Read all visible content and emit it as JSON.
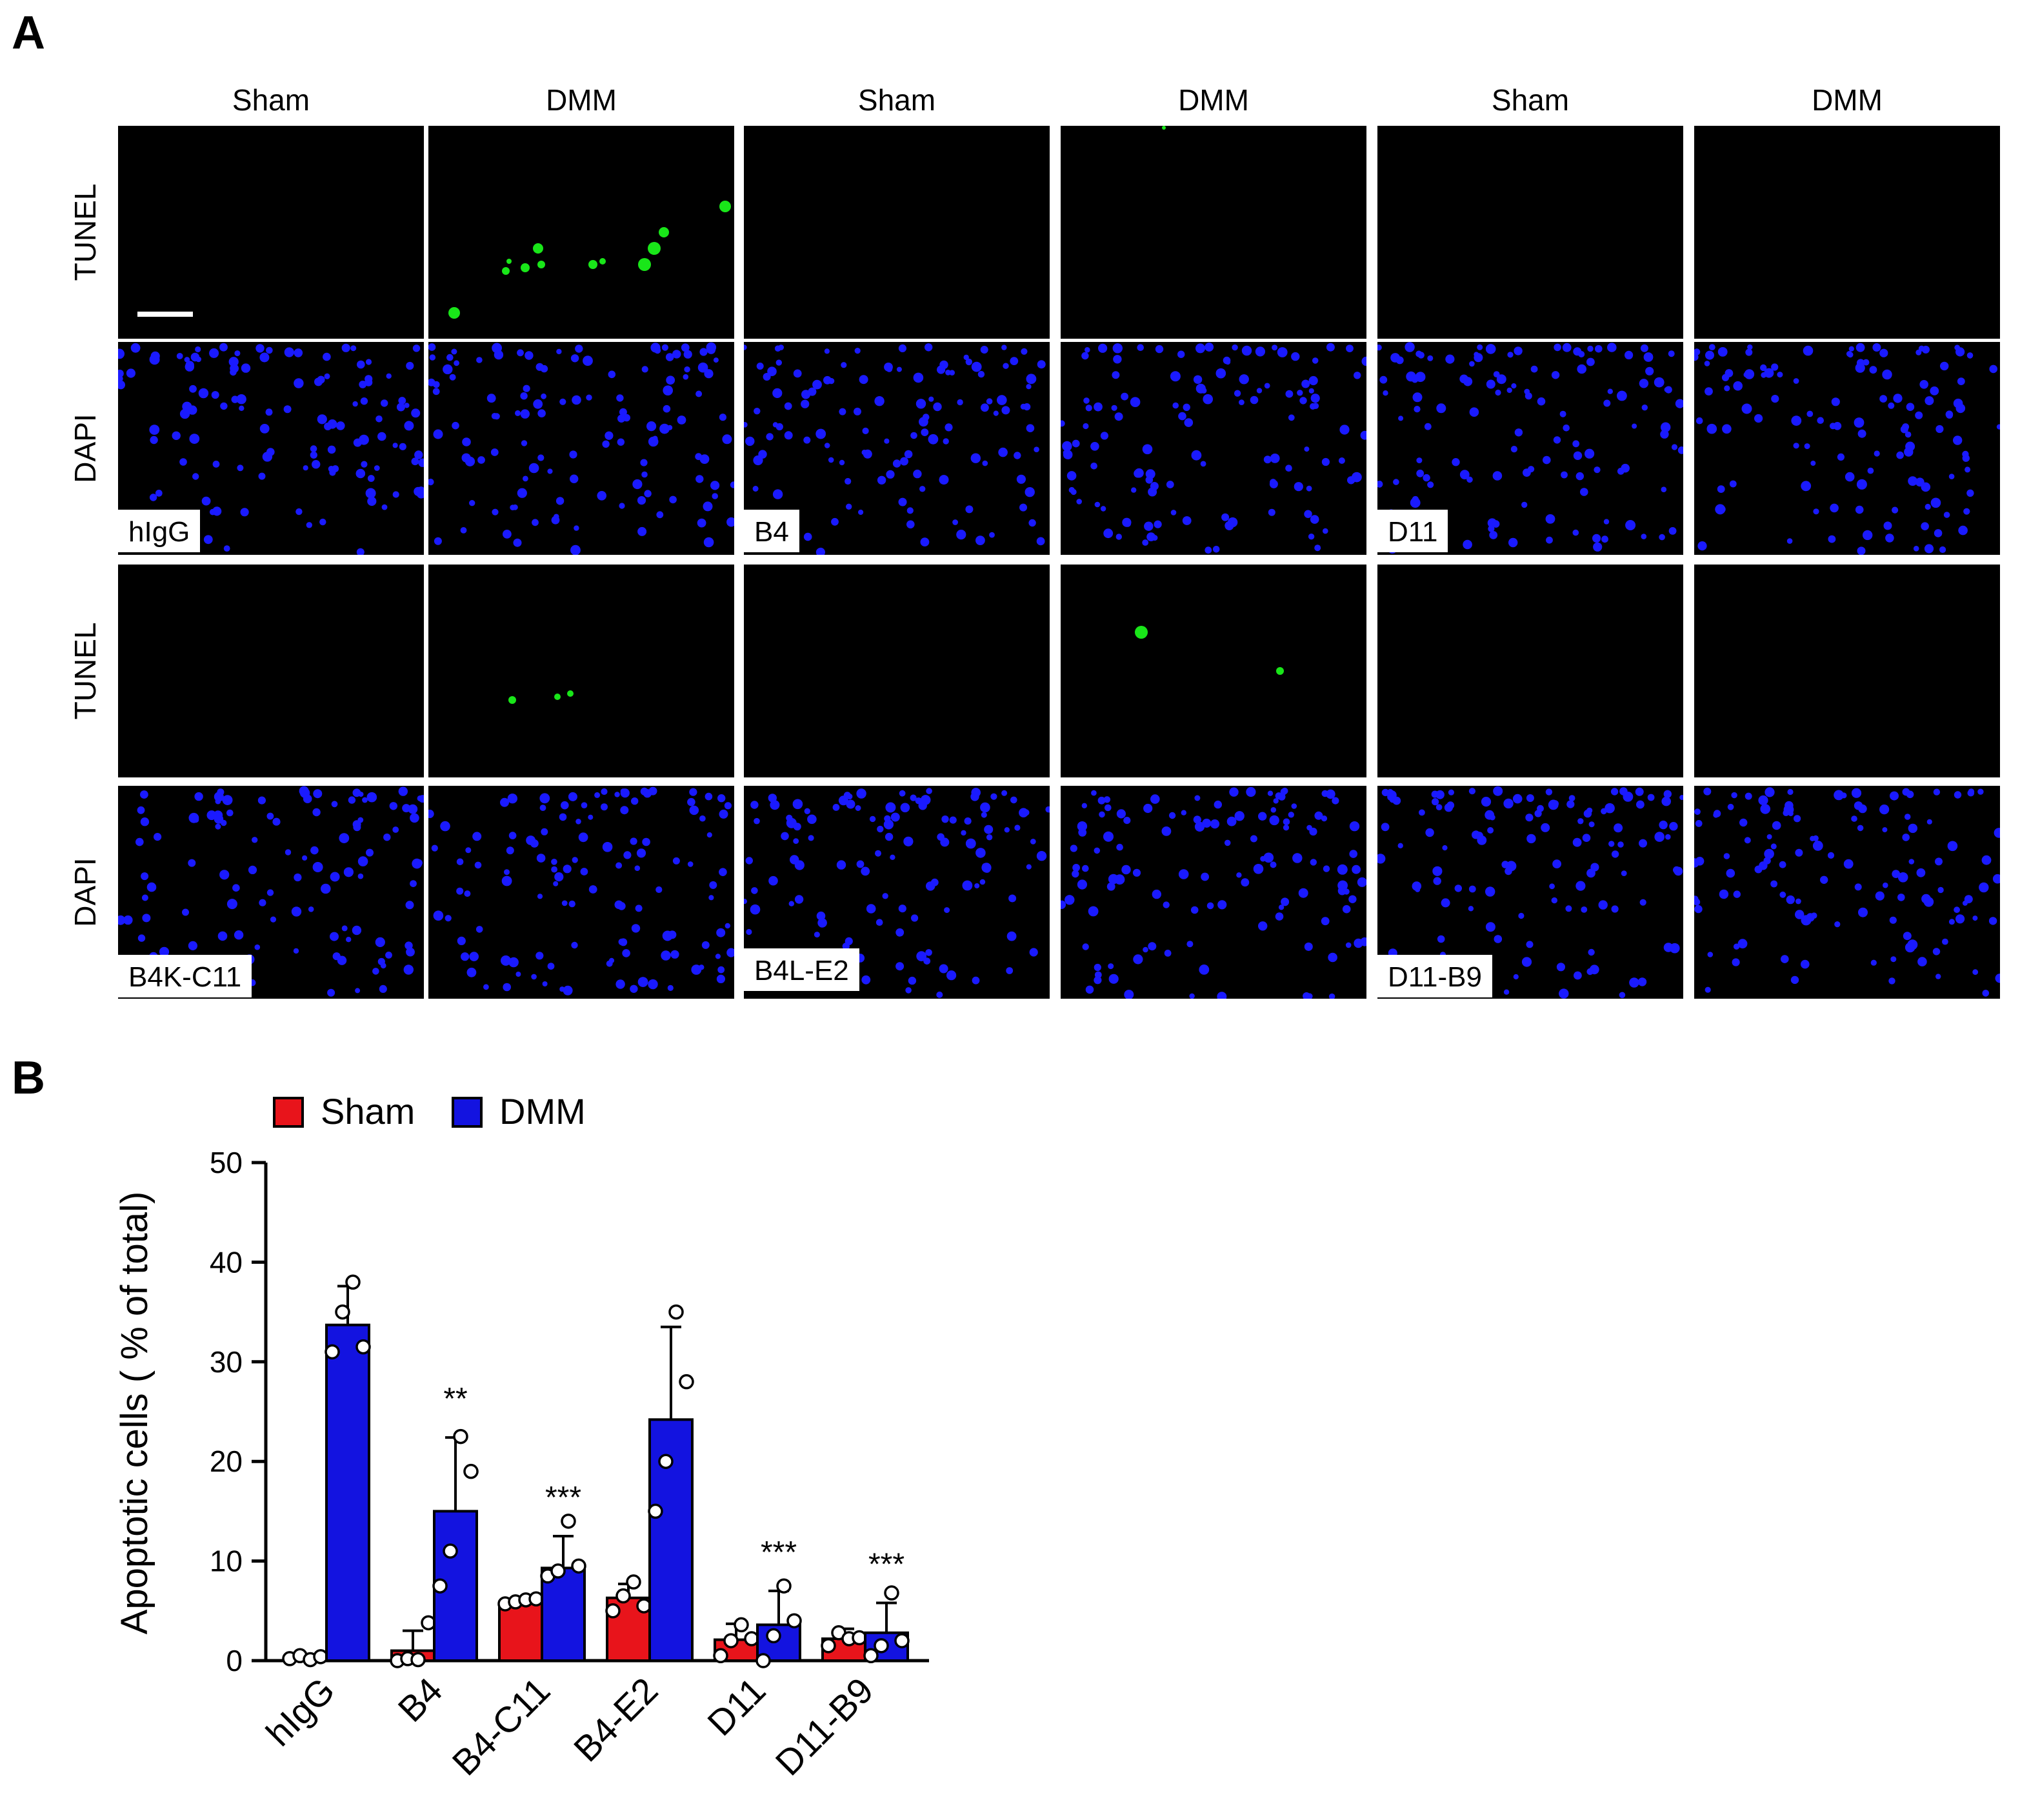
{
  "panels": {
    "a": "A",
    "b": "B"
  },
  "micrograph": {
    "column_labels": [
      "Sham",
      "DMM",
      "Sham",
      "DMM",
      "Sham",
      "DMM"
    ],
    "row_labels": [
      "TUNEL",
      "DAPI",
      "TUNEL",
      "DAPI"
    ],
    "group_labels": [
      "hIgG",
      "B4",
      "D11",
      "B4K-C11",
      "B4L-E2",
      "D11-B9"
    ],
    "colors": {
      "tunel": "#19e619",
      "dapi": "#1a1aff",
      "background": "#000000"
    }
  },
  "chart_data": {
    "type": "bar",
    "categories": [
      "hIgG",
      "B4",
      "B4-C11",
      "B4-E2",
      "D11",
      "D11-B9"
    ],
    "series": [
      {
        "name": "Sham",
        "color": "#e8141b",
        "values": [
          0.3,
          1.0,
          5.9,
          6.3,
          2.1,
          2.2
        ],
        "errors": [
          0.3,
          2.0,
          0.4,
          1.4,
          1.6,
          1.0
        ],
        "points": [
          [
            0.2,
            0.5,
            0.1,
            0.4
          ],
          [
            0.0,
            0.2,
            0.1,
            3.8
          ],
          [
            5.7,
            5.9,
            6.1,
            6.2
          ],
          [
            5.0,
            6.5,
            7.9,
            5.5
          ],
          [
            0.5,
            2.0,
            3.6,
            2.2
          ],
          [
            1.5,
            2.8,
            2.2,
            2.3
          ]
        ]
      },
      {
        "name": "DMM",
        "color": "#1313e0",
        "values": [
          33.7,
          15.0,
          9.3,
          24.2,
          3.6,
          2.8
        ],
        "errors": [
          3.9,
          7.4,
          3.2,
          9.3,
          3.4,
          3.0
        ],
        "points": [
          [
            31.0,
            35.0,
            38.0,
            31.5
          ],
          [
            7.5,
            11.0,
            22.5,
            19.0
          ],
          [
            8.5,
            9.0,
            14.0,
            9.5
          ],
          [
            15.0,
            20.0,
            35.0,
            28.0
          ],
          [
            0.0,
            2.5,
            7.5,
            4.0
          ],
          [
            0.5,
            1.5,
            6.8,
            2.0
          ]
        ]
      }
    ],
    "significance": [
      "",
      "**",
      "***",
      "",
      "***",
      "***"
    ],
    "ylabel": "Apoptotic cells ( % of total)",
    "ylim": [
      0,
      50
    ],
    "yticks": [
      "0",
      "10",
      "20",
      "30",
      "40",
      "50"
    ],
    "legend_position": "top"
  }
}
